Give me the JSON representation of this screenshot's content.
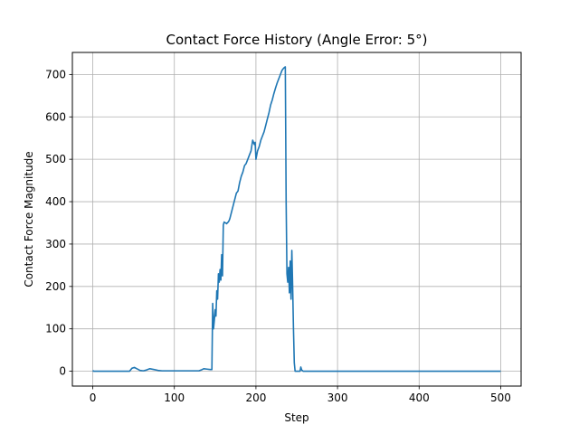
{
  "chart_data": {
    "type": "line",
    "title": "Contact Force History (Angle Error: 5°)",
    "xlabel": "Step",
    "ylabel": "Contact Force Magnitude",
    "xlim": [
      -25,
      525
    ],
    "ylim": [
      -35,
      752
    ],
    "xticks": [
      0,
      100,
      200,
      300,
      400,
      500
    ],
    "yticks": [
      0,
      100,
      200,
      300,
      400,
      500,
      600,
      700
    ],
    "grid": true,
    "line_color": "#1f77b4",
    "series": [
      {
        "x": [
          0,
          1,
          2,
          45,
          48,
          51,
          54,
          58,
          62,
          66,
          70,
          75,
          80,
          85,
          90,
          100,
          110,
          120,
          130,
          133,
          136,
          140,
          144,
          146,
          147,
          148,
          149,
          150,
          151,
          152,
          153,
          154,
          155,
          156,
          157,
          158,
          159,
          160,
          161,
          162,
          163,
          164,
          165,
          166,
          167,
          168,
          170,
          172,
          174,
          176,
          178,
          180,
          182,
          184,
          186,
          188,
          190,
          192,
          194,
          196,
          198,
          199,
          200,
          201,
          202,
          204,
          206,
          208,
          210,
          212,
          214,
          216,
          218,
          220,
          222,
          224,
          226,
          228,
          230,
          232,
          234,
          236,
          237,
          238,
          239,
          240,
          241,
          242,
          243,
          244,
          245,
          246,
          247,
          248,
          249,
          250,
          252,
          253,
          254,
          255,
          256,
          258,
          260,
          300,
          350,
          400,
          450,
          500
        ],
        "y": [
          2,
          0,
          0,
          0,
          7,
          9,
          6,
          2,
          1,
          3,
          6,
          4,
          2,
          1,
          1,
          1,
          1,
          1,
          1,
          3,
          6,
          5,
          4,
          4,
          160,
          100,
          120,
          145,
          130,
          190,
          170,
          230,
          210,
          240,
          215,
          275,
          225,
          345,
          352,
          350,
          350,
          348,
          350,
          352,
          355,
          360,
          375,
          390,
          405,
          420,
          425,
          445,
          460,
          470,
          485,
          490,
          500,
          510,
          520,
          545,
          535,
          540,
          500,
          510,
          520,
          530,
          545,
          555,
          565,
          580,
          595,
          610,
          628,
          640,
          655,
          668,
          680,
          690,
          700,
          710,
          715,
          718,
          400,
          230,
          210,
          245,
          185,
          260,
          170,
          285,
          200,
          100,
          20,
          0,
          0,
          0,
          0,
          0,
          0,
          10,
          3,
          0,
          0,
          0,
          0,
          0,
          0,
          0
        ]
      }
    ]
  }
}
